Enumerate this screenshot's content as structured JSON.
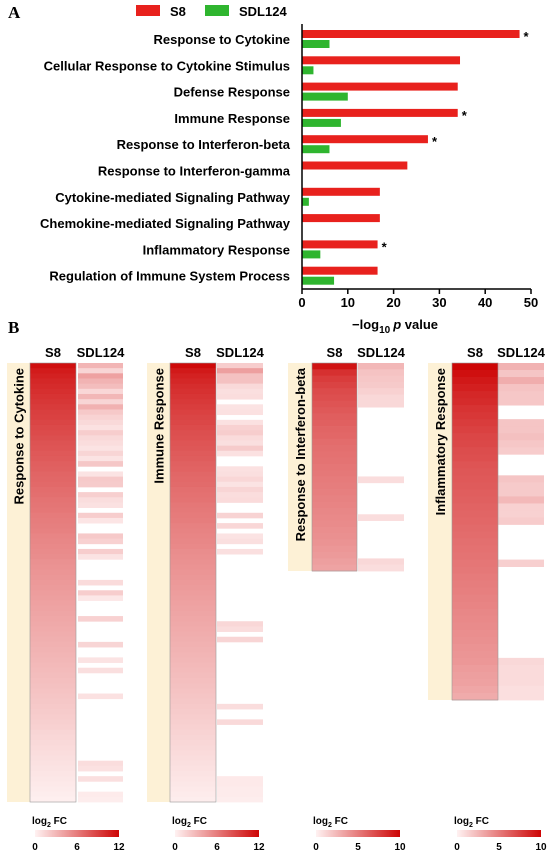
{
  "panels": {
    "a": "A",
    "b": "B"
  },
  "chart_data": [
    {
      "type": "bar",
      "orientation": "horizontal",
      "categories": [
        "Response to Cytokine",
        "Cellular Response to Cytokine Stimulus",
        "Defense Response",
        "Immune Response",
        "Response to Interferon-beta",
        "Response to Interferon-gamma",
        "Cytokine-mediated Signaling Pathway",
        "Chemokine-mediated Signaling Pathway",
        "Inflammatory Response",
        "Regulation of Immune System Process"
      ],
      "series": [
        {
          "name": "S8",
          "color": "#e8211d",
          "values": [
            47.5,
            34.5,
            34,
            34,
            27.5,
            23,
            17,
            17,
            16.5,
            16.5
          ]
        },
        {
          "name": "SDL124",
          "color": "#2fb52f",
          "values": [
            6,
            2.5,
            10,
            8.5,
            6,
            0,
            1.5,
            0,
            4,
            7
          ]
        }
      ],
      "significance": [
        "*",
        "",
        "",
        "*",
        "*",
        "",
        "",
        "",
        "*",
        ""
      ],
      "xlabel_prefix": "−log",
      "xlabel_sub": "10",
      "xlabel_p": "p",
      "xlabel_suffix": " value",
      "xlim": [
        0,
        50
      ],
      "xticks": [
        "0",
        "10",
        "20",
        "30",
        "40",
        "50"
      ],
      "legend_position": "top"
    },
    {
      "type": "heatmap",
      "columns": [
        "S8",
        "SDL124"
      ],
      "panels": [
        {
          "title": "Response to Cytokine",
          "s8": [
            11.5,
            10.9,
            10.6,
            10.3,
            10.1,
            9.9,
            9.7,
            9.5,
            9.3,
            9.1,
            9.0,
            8.8,
            8.6,
            8.5,
            8.3,
            8.1,
            8.0,
            7.8,
            7.7,
            7.5,
            7.4,
            7.2,
            7.1,
            7.0,
            6.8,
            6.7,
            6.5,
            6.4,
            6.3,
            6.1,
            6.0,
            5.9,
            5.8,
            5.6,
            5.5,
            5.4,
            5.3,
            5.2,
            5.0,
            4.9,
            4.8,
            4.7,
            4.6,
            4.5,
            4.4,
            4.3,
            4.2,
            4.1,
            4.0,
            3.9,
            3.8,
            3.7,
            3.6,
            3.5,
            3.4,
            3.3,
            3.2,
            3.1,
            3.0,
            2.9,
            2.8,
            2.7,
            2.6,
            2.5,
            2.4,
            2.3,
            2.2,
            2.1,
            2.0,
            1.9,
            1.8,
            1.6,
            1.5,
            1.4,
            1.3,
            1.2,
            1.1,
            1.0,
            0.9,
            0.8,
            0.7,
            0.6,
            0.5,
            0.4,
            0.3
          ],
          "sdl124": [
            3.2,
            1.6,
            4.2,
            3.3,
            2.8,
            1.5,
            3.1,
            1.6,
            3.4,
            2.2,
            1.7,
            1.4,
            1.0,
            2.0,
            1.4,
            1.2,
            0.9,
            1.6,
            0.9,
            2.3,
            0,
            0.9,
            2.2,
            2.1,
            0,
            1.9,
            1.2,
            1.0,
            0,
            2.0,
            0.8,
            0,
            0,
            2.2,
            1.8,
            0,
            2.0,
            0.9,
            0,
            0,
            0,
            0,
            1.3,
            0,
            2.0,
            0.7,
            0,
            0,
            0,
            1.8,
            0,
            0,
            0,
            0,
            1.6,
            0,
            0,
            0.9,
            0,
            1.1,
            0,
            0,
            0,
            0,
            1.0,
            0,
            0,
            0,
            0,
            0,
            0,
            0,
            0,
            0,
            0,
            0,
            0,
            1.2,
            1.0,
            0,
            1.1,
            0,
            0,
            0.5,
            0.4
          ]
        },
        {
          "title": "Immune Response",
          "s8": [
            11.8,
            11.0,
            10.6,
            10.3,
            10.0,
            9.8,
            9.6,
            9.4,
            9.2,
            9.0,
            8.8,
            8.7,
            8.5,
            8.3,
            8.2,
            8.0,
            7.9,
            7.7,
            7.6,
            7.4,
            7.3,
            7.1,
            7.0,
            6.9,
            6.7,
            6.6,
            6.5,
            6.3,
            6.2,
            6.1,
            6.0,
            5.8,
            5.7,
            5.6,
            5.5,
            5.4,
            5.2,
            5.1,
            5.0,
            4.9,
            4.8,
            4.7,
            4.6,
            4.5,
            4.4,
            4.3,
            4.2,
            4.1,
            4.0,
            3.9,
            3.8,
            3.7,
            3.6,
            3.5,
            3.4,
            3.3,
            3.2,
            3.1,
            3.0,
            2.9,
            2.8,
            2.7,
            2.6,
            2.5,
            2.4,
            2.3,
            2.2,
            2.1,
            2.0,
            1.9,
            1.8,
            1.7,
            1.6,
            1.5,
            1.4,
            1.3,
            1.2,
            1.1,
            1.0,
            0.9,
            0.8,
            0.7,
            0.6,
            0.5,
            0.4
          ],
          "sdl124": [
            2.0,
            4.3,
            2.6,
            2.6,
            1.4,
            1.1,
            1.2,
            0,
            0.9,
            1.0,
            0,
            1.0,
            1.8,
            2.0,
            1.3,
            1.1,
            2.1,
            1.0,
            0,
            0,
            1.0,
            1.1,
            1.5,
            0.9,
            1.6,
            1.2,
            1.3,
            0,
            0,
            1.7,
            0,
            1.5,
            0,
            0.9,
            1.1,
            0,
            1.1,
            0,
            0,
            0,
            0,
            0,
            0,
            0,
            0,
            0,
            0,
            0,
            0,
            0,
            1.5,
            1.2,
            0,
            1.6,
            0,
            0,
            0,
            0,
            0,
            0,
            0,
            0,
            0,
            0,
            0,
            0,
            1.2,
            0,
            0,
            1.4,
            0,
            0,
            0,
            0,
            0,
            0,
            0,
            0,
            0,
            0,
            0.6,
            0.6,
            0.5,
            0.5,
            0.4
          ]
        },
        {
          "title": "Response to Interferon-beta",
          "s8": [
            9.4,
            8.2,
            7.7,
            7.4,
            7.1,
            6.9,
            6.7,
            6.5,
            6.3,
            6.2,
            6.0,
            5.9,
            5.7,
            5.6,
            5.5,
            5.4,
            5.3,
            5.2,
            5.1,
            5.0,
            4.9,
            4.8,
            4.7,
            4.6,
            4.5,
            4.4,
            4.3,
            4.2,
            4.1,
            3.9,
            3.8,
            3.6,
            3.4
          ],
          "sdl124": [
            2.6,
            2.1,
            1.9,
            1.8,
            1.5,
            1.2,
            1.2,
            0,
            0,
            0,
            0,
            0,
            0,
            0,
            0,
            0,
            0,
            0,
            1.0,
            0,
            0,
            0,
            0,
            0,
            1.0,
            0,
            0,
            0,
            0,
            0,
            0,
            1.2,
            1.0
          ]
        },
        {
          "title": "Inflammatory Response",
          "s8": [
            10.0,
            9.6,
            9.2,
            8.9,
            8.6,
            8.4,
            8.1,
            7.9,
            7.7,
            7.5,
            7.3,
            7.2,
            7.0,
            6.9,
            6.7,
            6.6,
            6.5,
            6.4,
            6.3,
            6.2,
            6.1,
            6.0,
            5.9,
            5.8,
            5.7,
            5.6,
            5.5,
            5.4,
            5.3,
            5.2,
            5.1,
            5.0,
            4.9,
            4.8,
            4.7,
            4.6,
            4.5,
            4.4,
            4.3,
            4.2,
            4.1,
            4.0,
            3.9,
            3.7,
            3.6,
            3.5,
            3.3,
            3.1
          ],
          "sdl124": [
            2.8,
            2.0,
            3.0,
            2.1,
            1.9,
            1.9,
            0,
            0,
            2.0,
            2.0,
            2.2,
            1.9,
            1.7,
            0,
            0,
            0,
            2.0,
            1.8,
            1.8,
            2.5,
            1.5,
            1.5,
            1.7,
            0,
            0,
            0,
            0,
            0,
            1.6,
            0,
            0,
            0,
            0,
            0,
            0,
            0,
            0,
            0,
            0,
            0,
            0,
            0,
            1.2,
            1.1,
            1.1,
            1.1,
            0.9,
            0.9
          ]
        }
      ]
    }
  ],
  "colorbars": [
    {
      "label_main": "log",
      "label_sub": "2",
      "label_end": " FC",
      "ticks": [
        "0",
        "6",
        "12"
      ],
      "max": 12
    },
    {
      "label_main": "log",
      "label_sub": "2",
      "label_end": " FC",
      "ticks": [
        "0",
        "6",
        "12"
      ],
      "max": 12
    },
    {
      "label_main": "log",
      "label_sub": "2",
      "label_end": " FC",
      "ticks": [
        "0",
        "5",
        "10"
      ],
      "max": 10
    },
    {
      "label_main": "log",
      "label_sub": "2",
      "label_end": " FC",
      "ticks": [
        "0",
        "5",
        "10"
      ],
      "max": 10
    }
  ]
}
